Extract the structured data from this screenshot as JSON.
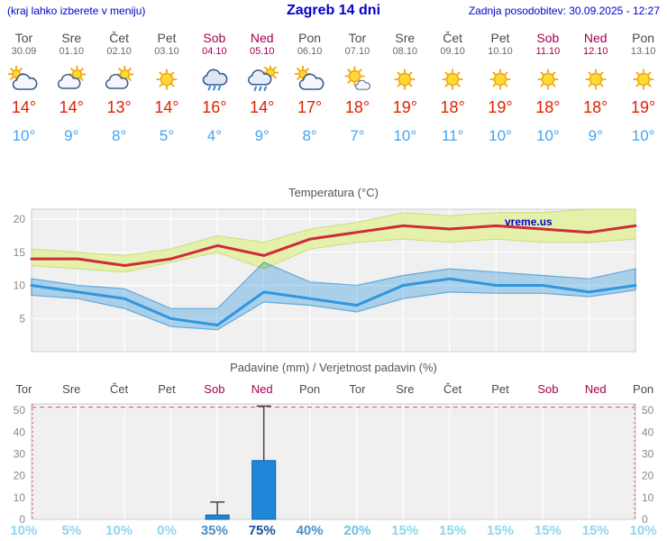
{
  "header": {
    "note": "(kraj lahko izberete v meniju)",
    "title": "Zagreb 14 dni",
    "updated": "Zadnja posodobitev: 30.09.2025 - 12:27"
  },
  "days": [
    {
      "name": "Tor",
      "date": "30.09",
      "weekend": false,
      "icon": "mostly-cloudy",
      "tmax": "14°",
      "tmin": "10°"
    },
    {
      "name": "Sre",
      "date": "01.10",
      "weekend": false,
      "icon": "partly-cloudy",
      "tmax": "14°",
      "tmin": "9°"
    },
    {
      "name": "Čet",
      "date": "02.10",
      "weekend": false,
      "icon": "partly-cloudy",
      "tmax": "13°",
      "tmin": "8°"
    },
    {
      "name": "Pet",
      "date": "03.10",
      "weekend": false,
      "icon": "sunny",
      "tmax": "14°",
      "tmin": "5°"
    },
    {
      "name": "Sob",
      "date": "04.10",
      "weekend": true,
      "icon": "rain",
      "tmax": "16°",
      "tmin": "4°"
    },
    {
      "name": "Ned",
      "date": "05.10",
      "weekend": true,
      "icon": "rain-sun",
      "tmax": "14°",
      "tmin": "9°"
    },
    {
      "name": "Pon",
      "date": "06.10",
      "weekend": false,
      "icon": "mostly-cloudy",
      "tmax": "17°",
      "tmin": "8°"
    },
    {
      "name": "Tor",
      "date": "07.10",
      "weekend": false,
      "icon": "sun-small-cloud",
      "tmax": "18°",
      "tmin": "7°"
    },
    {
      "name": "Sre",
      "date": "08.10",
      "weekend": false,
      "icon": "sunny",
      "tmax": "19°",
      "tmin": "10°"
    },
    {
      "name": "Čet",
      "date": "09.10",
      "weekend": false,
      "icon": "sunny",
      "tmax": "18°",
      "tmin": "11°"
    },
    {
      "name": "Pet",
      "date": "10.10",
      "weekend": false,
      "icon": "sunny",
      "tmax": "19°",
      "tmin": "10°"
    },
    {
      "name": "Sob",
      "date": "11.10",
      "weekend": true,
      "icon": "sunny",
      "tmax": "18°",
      "tmin": "10°"
    },
    {
      "name": "Ned",
      "date": "12.10",
      "weekend": true,
      "icon": "sunny",
      "tmax": "18°",
      "tmin": "9°"
    },
    {
      "name": "Pon",
      "date": "13.10",
      "weekend": false,
      "icon": "sunny",
      "tmax": "19°",
      "tmin": "10°"
    }
  ],
  "chart_data": [
    {
      "type": "line",
      "title": "Temperatura (°C)",
      "watermark": "vreme.us",
      "categories": [
        "Tor",
        "Sre",
        "Čet",
        "Pet",
        "Sob",
        "Ned",
        "Pon",
        "Tor",
        "Sre",
        "Čet",
        "Pet",
        "Sob",
        "Ned",
        "Pon"
      ],
      "ylim": [
        0,
        21.5
      ],
      "yticks": [
        5,
        10,
        15,
        20
      ],
      "series": [
        {
          "name": "temp-max",
          "color": "#cf2b3a",
          "values": [
            14,
            14,
            13,
            14,
            16,
            14.5,
            17,
            18,
            19,
            18.5,
            19,
            18.5,
            18,
            19
          ]
        },
        {
          "name": "temp-min",
          "color": "#2f96e0",
          "values": [
            10,
            9,
            8,
            5,
            4,
            9,
            8,
            7,
            10,
            11,
            10,
            10,
            9,
            10
          ]
        },
        {
          "name": "temp-max-band-upper",
          "values": [
            15.5,
            15,
            14.5,
            15.5,
            17.5,
            16.5,
            18.5,
            19.5,
            21,
            20.5,
            21,
            21,
            21.5,
            22.5
          ]
        },
        {
          "name": "temp-max-band-lower",
          "values": [
            13,
            12.5,
            12,
            13.5,
            15,
            12.5,
            15.5,
            16.5,
            17,
            16.5,
            17,
            16.5,
            16.5,
            17
          ]
        },
        {
          "name": "temp-min-band-upper",
          "values": [
            11,
            10,
            9.5,
            6.5,
            6.5,
            13.5,
            10.5,
            10,
            11.5,
            12.5,
            12,
            11.5,
            11,
            12.5
          ]
        },
        {
          "name": "temp-min-band-lower",
          "values": [
            8.5,
            8,
            6.5,
            3.8,
            3.3,
            7.5,
            7,
            6,
            8,
            9,
            8.8,
            8.8,
            8.3,
            9.3
          ]
        }
      ],
      "band_colors": {
        "max": "#e5f0ab",
        "min": "#b4dcf8"
      }
    },
    {
      "type": "bar",
      "title": "Padavine (mm) / Verjetnost padavin (%)",
      "categories": [
        "Tor",
        "Sre",
        "Čet",
        "Pet",
        "Sob",
        "Ned",
        "Pon",
        "Tor",
        "Sre",
        "Čet",
        "Pet",
        "Sob",
        "Ned",
        "Pon"
      ],
      "weekend": [
        false,
        false,
        false,
        false,
        true,
        true,
        false,
        false,
        false,
        false,
        false,
        true,
        true,
        false
      ],
      "ylim": [
        0,
        53
      ],
      "yticks": [
        0,
        10,
        20,
        30,
        40,
        50
      ],
      "precip_mm": [
        0,
        0,
        0,
        0,
        2,
        27,
        0,
        0,
        0,
        0,
        0,
        0,
        0,
        0
      ],
      "whisker_max_mm": [
        0,
        0,
        0,
        0,
        8,
        52,
        0,
        0,
        0,
        0,
        0,
        0,
        0,
        0
      ],
      "probability": [
        "10%",
        "5%",
        "10%",
        "0%",
        "35%",
        "75%",
        "40%",
        "20%",
        "15%",
        "15%",
        "15%",
        "15%",
        "15%",
        "10%"
      ],
      "probability_colors": [
        "#8ed7ec",
        "#8ed7ec",
        "#8ed7ec",
        "#8ed7ec",
        "#4b8fc9",
        "#1d4f9c",
        "#4b8fc9",
        "#6fc2e2",
        "#8ed7ec",
        "#8ed7ec",
        "#8ed7ec",
        "#8ed7ec",
        "#8ed7ec",
        "#8ed7ec"
      ],
      "bar_color": "#1f86d8"
    }
  ],
  "colors": {
    "header_blue": "#0000cc",
    "weekday": "#4a4a4a",
    "weekend": "#a6004f",
    "date": "#6a6a6a",
    "tmax_red": "#dd2200",
    "tmin_blue": "#42a5f5",
    "chart_bg": "#f0f0f0",
    "axis_label": "#888888"
  }
}
